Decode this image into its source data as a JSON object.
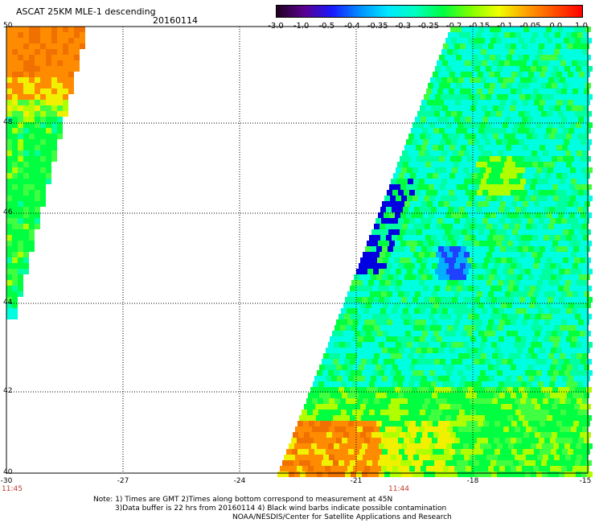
{
  "header": {
    "title": "ASCAT 25KM MLE-1 descending",
    "date": "20160114"
  },
  "colorbar": {
    "labels": [
      "-3.0",
      "-1.0",
      "-0.5",
      "-0.4",
      "-0.35",
      "-0.3",
      "-0.25",
      "-0.2",
      "-0.15",
      "-0.1",
      "-0.05",
      "0.0",
      "1.0"
    ],
    "colors": [
      "#200020",
      "#5a0090",
      "#1a1aff",
      "#0090ff",
      "#00e8ff",
      "#00ffc0",
      "#00ff40",
      "#80ff00",
      "#f0ff00",
      "#ffa000",
      "#ff5000",
      "#ff0000"
    ]
  },
  "axes": {
    "lat_labels": [
      "50",
      "48",
      "46",
      "44",
      "42",
      "40"
    ],
    "lon_labels": [
      "-30",
      "-27",
      "-24",
      "-21",
      "-18",
      "-15"
    ],
    "times": [
      "11:45",
      "11:44"
    ]
  },
  "notes": [
    "Note: 1) Times are GMT 2)Times along bottom correspond to measurement at 45N",
    "3)Data buffer is 22 hrs from 20160114 4) Black wind barbs indicate possible contamination",
    "NOAA/NESDIS/Center for Satellite Applications and Research"
  ],
  "palette": {
    "orange": "#ff8c00",
    "dark_orange": "#f07000",
    "yellow": "#f0f000",
    "yellow_green": "#b0ff00",
    "green": "#00ff40",
    "green_light": "#40ff40",
    "aqua_green": "#00ffa0",
    "cyan": "#00ffe0",
    "blue_light": "#00b0ff",
    "blue": "#2040ff",
    "dark_blue": "#0000e0"
  }
}
